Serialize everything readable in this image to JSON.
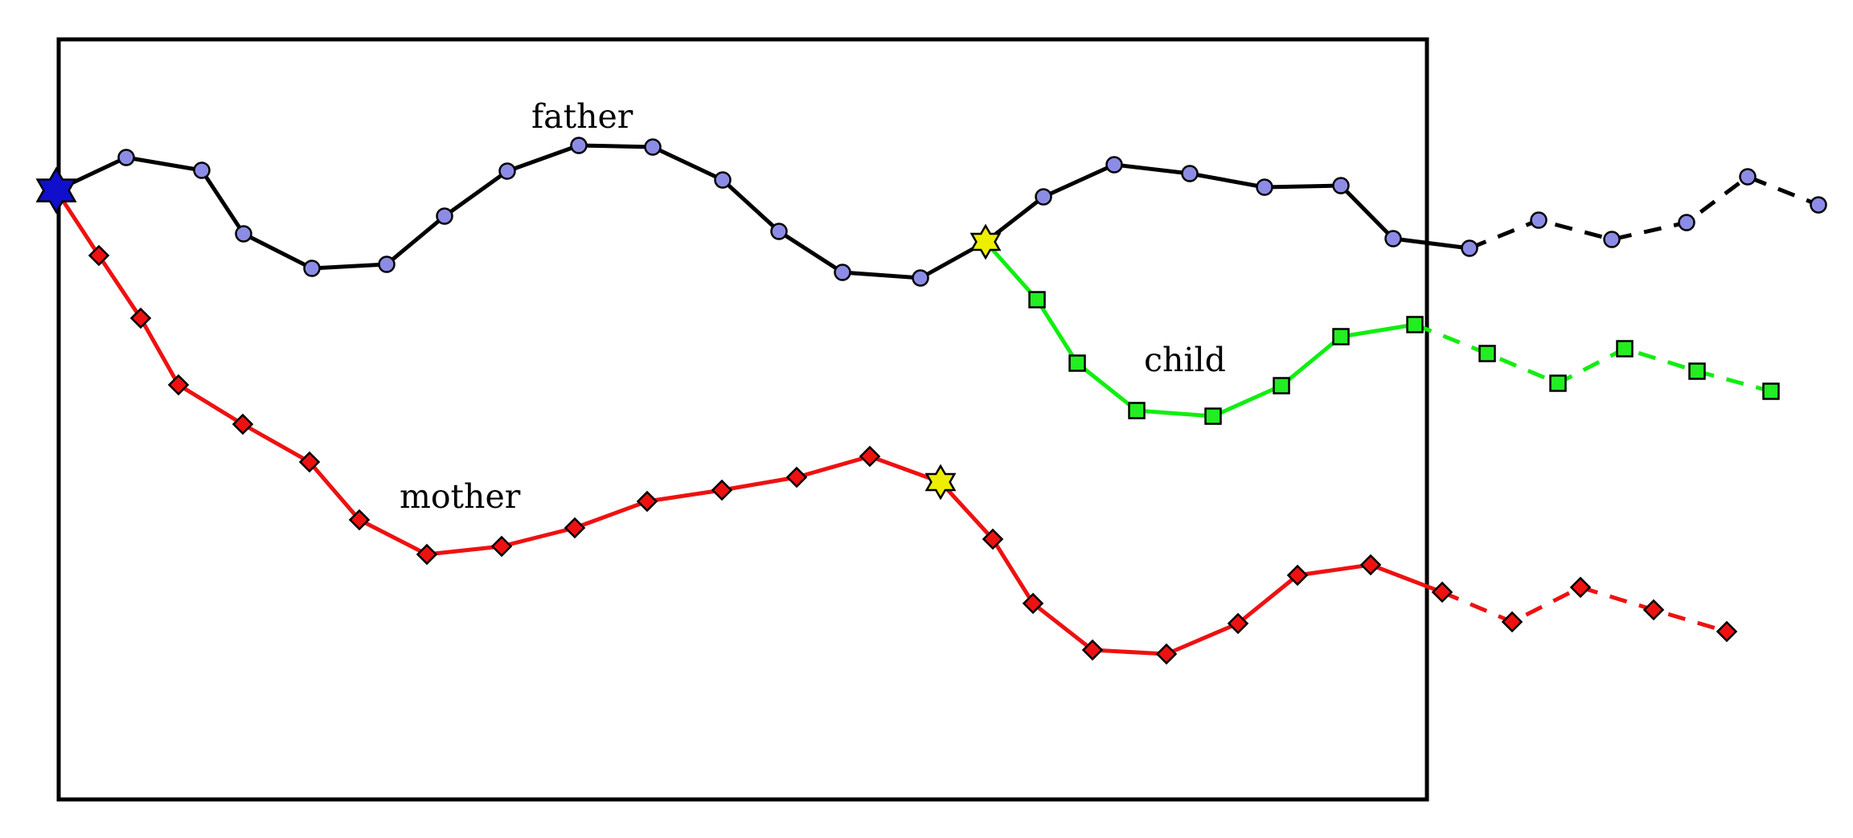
{
  "labels": {
    "father": "father",
    "mother": "mother",
    "child": "child"
  },
  "colors": {
    "father_line": "#000000",
    "father_marker": "#8c8ce6",
    "mother_line": "#ee1111",
    "mother_marker": "#ee1111",
    "child_line": "#11ee11",
    "child_marker": "#22ee22",
    "root_star": "#1010cc",
    "branch_star": "#eeee00",
    "frame": "#000000"
  },
  "markers": {
    "father": "circle",
    "mother": "diamond",
    "child": "square",
    "root": "six-point-star",
    "branch": "six-point-star"
  },
  "lineages": {
    "father_observed_steps": 18,
    "father_continued_steps": 6,
    "mother_observed_steps": 20,
    "mother_continued_steps": 4,
    "child_observed_steps": 6,
    "child_continued_steps": 5
  }
}
